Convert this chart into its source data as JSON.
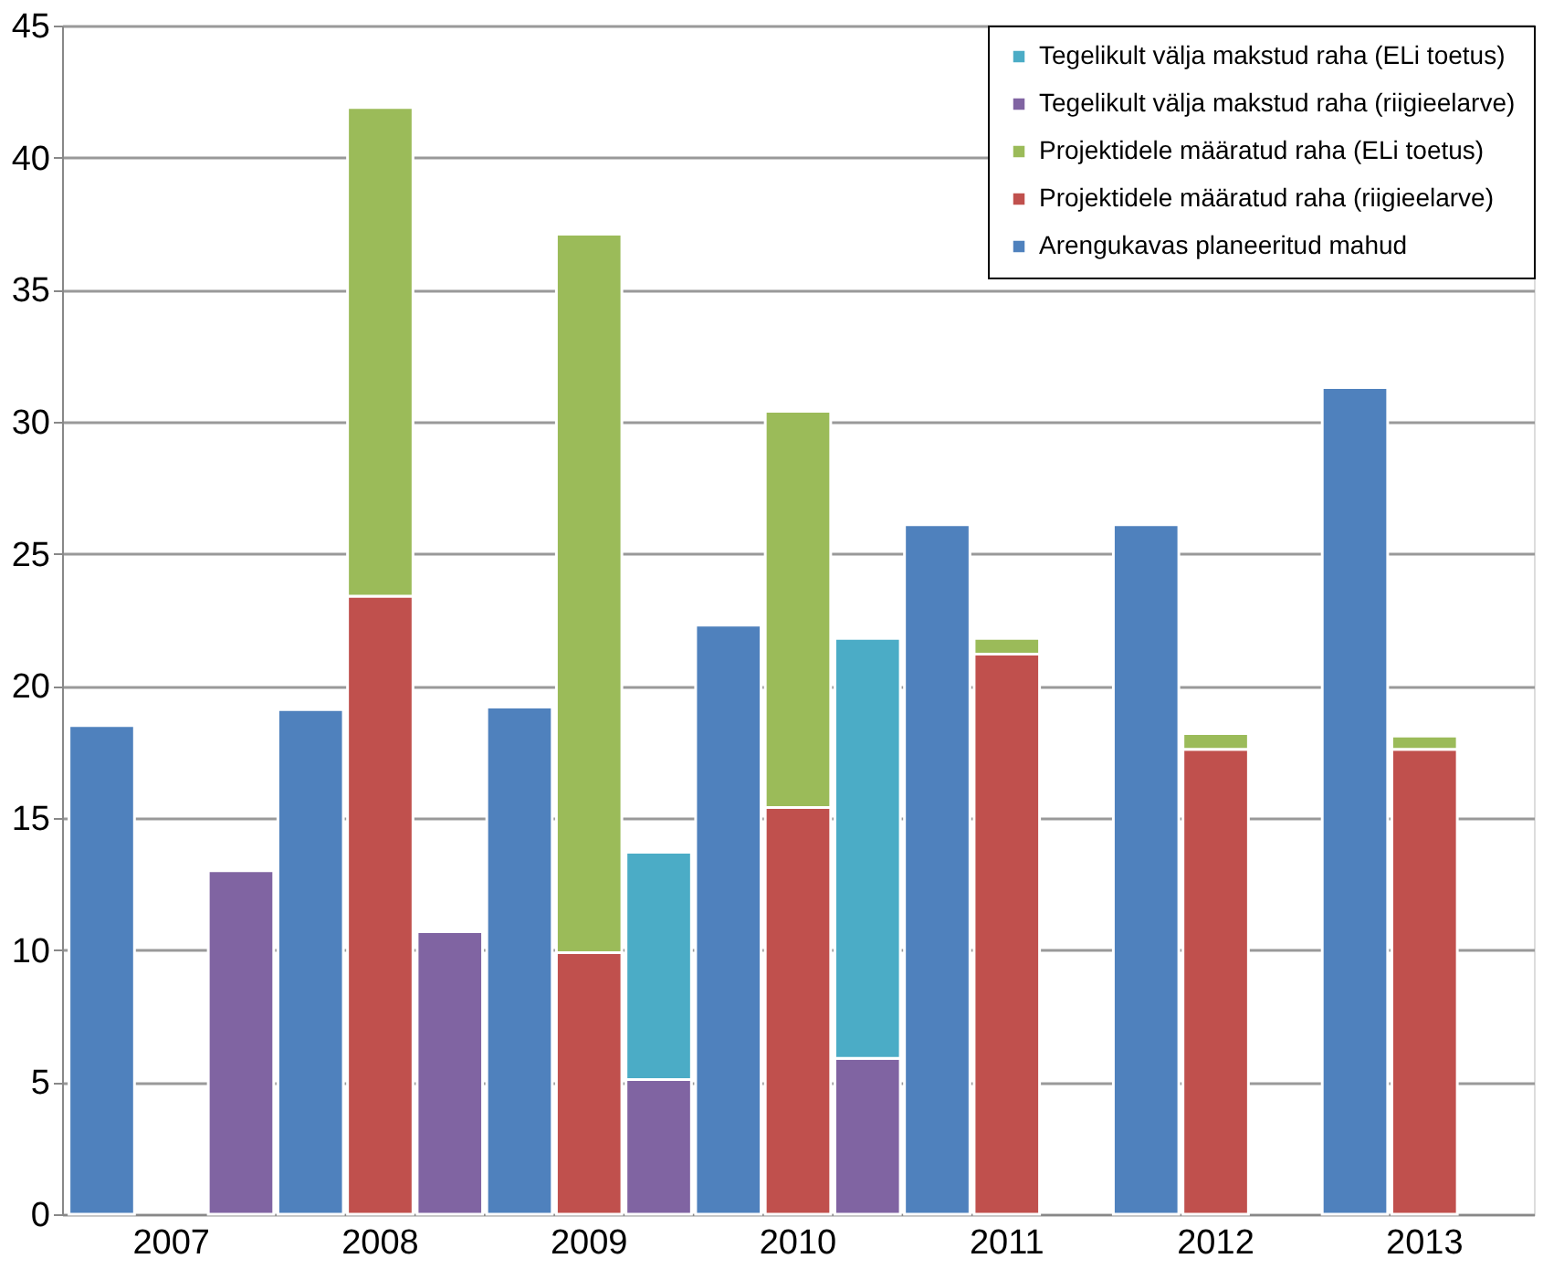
{
  "chart_data": {
    "type": "bar",
    "stacked": true,
    "categories": [
      null,
      "2007",
      null,
      null,
      "2008",
      null,
      null,
      "2009",
      null,
      null,
      "2010",
      null,
      null,
      "2011",
      null,
      null,
      "2012",
      null,
      null,
      "2013",
      null
    ],
    "series": [
      {
        "name": "Arengukavas planeeritud mahud",
        "color": "#4f81bd",
        "values": [
          18.5,
          null,
          null,
          19.1,
          null,
          null,
          19.2,
          null,
          null,
          22.3,
          null,
          null,
          26.1,
          null,
          null,
          26.1,
          null,
          null,
          31.3,
          null,
          null
        ]
      },
      {
        "name": "Projektidele määratud raha (riigieelarve)",
        "color": "#c0504d",
        "values": [
          null,
          null,
          null,
          null,
          23.4,
          null,
          null,
          9.9,
          null,
          null,
          15.4,
          null,
          null,
          21.2,
          null,
          null,
          17.6,
          null,
          null,
          17.6,
          null
        ]
      },
      {
        "name": "Projektidele määratud raha (ELi toetus)",
        "color": "#9bbb59",
        "values": [
          null,
          null,
          null,
          null,
          18.5,
          null,
          null,
          27.2,
          null,
          null,
          15.0,
          null,
          null,
          0.6,
          null,
          null,
          0.6,
          null,
          null,
          0.5,
          null
        ]
      },
      {
        "name": "Tegelikult välja makstud raha (riigieelarve)",
        "color": "#8064a2",
        "values": [
          null,
          null,
          13.0,
          null,
          null,
          10.7,
          null,
          null,
          5.1,
          null,
          null,
          5.9,
          null,
          null,
          null,
          null,
          null,
          null,
          null,
          null,
          null
        ]
      },
      {
        "name": "Tegelikult välja makstud raha (ELi toetus)",
        "color": "#4bacc6",
        "values": [
          null,
          null,
          null,
          null,
          null,
          null,
          null,
          null,
          8.6,
          null,
          null,
          15.9,
          null,
          null,
          null,
          null,
          null,
          null,
          null,
          null,
          null
        ]
      }
    ],
    "ylim": [
      0,
      45
    ],
    "yticks": [
      0,
      5,
      10,
      15,
      20,
      25,
      30,
      35,
      40,
      45
    ],
    "grid": "y",
    "legend": "top right"
  }
}
